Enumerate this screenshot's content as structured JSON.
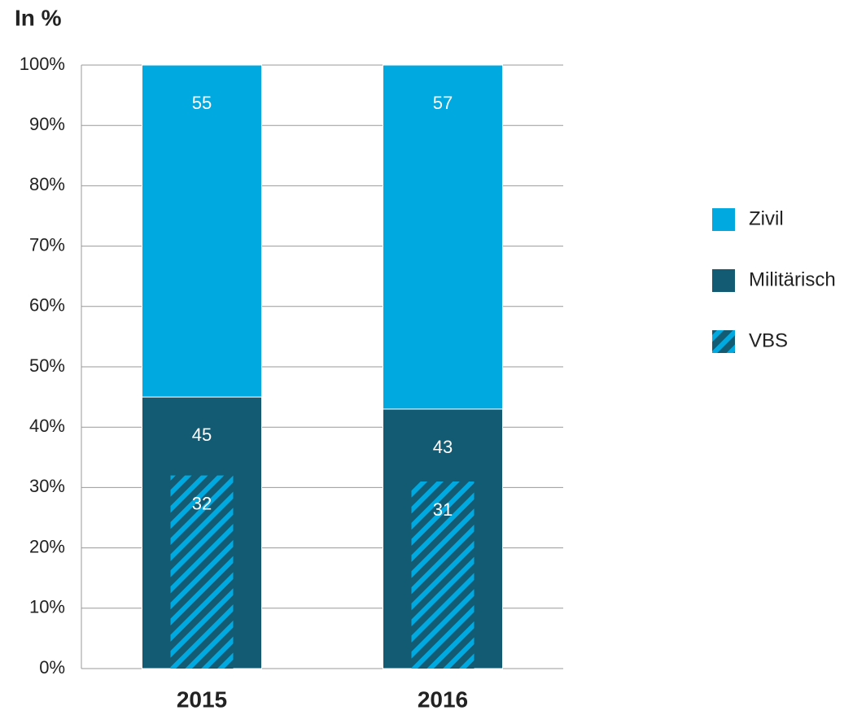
{
  "chart_data": {
    "type": "bar",
    "title": "In %",
    "categories": [
      "2015",
      "2016"
    ],
    "series": [
      {
        "name": "Militärisch",
        "color": "#135a73",
        "values": [
          45,
          43
        ]
      },
      {
        "name": "Zivil",
        "color": "#00a9e0",
        "values": [
          55,
          57
        ]
      },
      {
        "name": "VBS",
        "color": "#00a9e0",
        "pattern": "hatched",
        "values": [
          32,
          31
        ]
      }
    ],
    "ylim": [
      0,
      100
    ],
    "yticks": [
      {
        "value": 0,
        "label": "0%"
      },
      {
        "value": 10,
        "label": "10%"
      },
      {
        "value": 20,
        "label": "20%"
      },
      {
        "value": 30,
        "label": "30%"
      },
      {
        "value": 40,
        "label": "40%"
      },
      {
        "value": 50,
        "label": "50%"
      },
      {
        "value": 60,
        "label": "60%"
      },
      {
        "value": 70,
        "label": "70%"
      },
      {
        "value": 80,
        "label": "80%"
      },
      {
        "value": 90,
        "label": "90%"
      },
      {
        "value": 100,
        "label": "100%"
      }
    ],
    "grid": true,
    "legend": "right"
  }
}
